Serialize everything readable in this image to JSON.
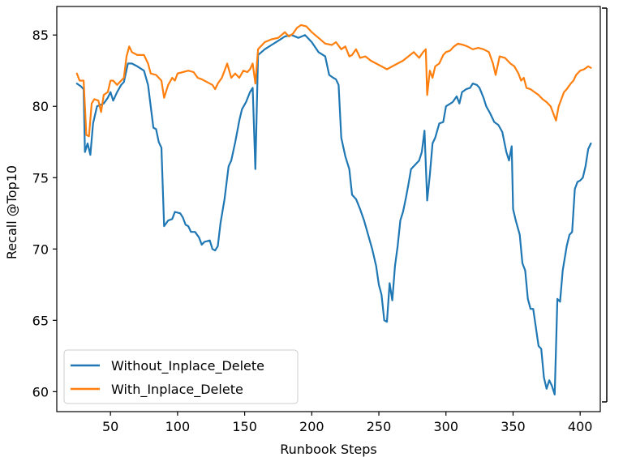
{
  "chart_data": {
    "type": "line",
    "xlabel": "Runbook Steps",
    "ylabel": "Recall @Top10",
    "xlim": [
      10,
      415
    ],
    "ylim": [
      58.6,
      87.0
    ],
    "xticks": [
      50,
      100,
      150,
      200,
      250,
      300,
      350,
      400
    ],
    "yticks": [
      60,
      65,
      70,
      75,
      80,
      85
    ],
    "grid": false,
    "legend_position": "lower-left",
    "series": [
      {
        "name": "Without_Inplace_Delete",
        "color": "#1f77b4",
        "points": [
          [
            25,
            81.6
          ],
          [
            28,
            81.4
          ],
          [
            30,
            81.2
          ],
          [
            31,
            76.8
          ],
          [
            33,
            77.4
          ],
          [
            35,
            76.6
          ],
          [
            37,
            78.8
          ],
          [
            40,
            80.0
          ],
          [
            45,
            80.2
          ],
          [
            48,
            80.6
          ],
          [
            50,
            81.0
          ],
          [
            52,
            80.4
          ],
          [
            55,
            81.0
          ],
          [
            58,
            81.5
          ],
          [
            60,
            81.7
          ],
          [
            63,
            83.0
          ],
          [
            66,
            83.0
          ],
          [
            70,
            82.8
          ],
          [
            75,
            82.5
          ],
          [
            78,
            81.5
          ],
          [
            80,
            80.0
          ],
          [
            82,
            78.5
          ],
          [
            84,
            78.4
          ],
          [
            86,
            77.5
          ],
          [
            88,
            77.1
          ],
          [
            90,
            71.6
          ],
          [
            93,
            72.0
          ],
          [
            96,
            72.1
          ],
          [
            98,
            72.6
          ],
          [
            102,
            72.5
          ],
          [
            104,
            72.2
          ],
          [
            106,
            71.7
          ],
          [
            108,
            71.6
          ],
          [
            110,
            71.2
          ],
          [
            113,
            71.2
          ],
          [
            116,
            70.8
          ],
          [
            118,
            70.3
          ],
          [
            120,
            70.5
          ],
          [
            124,
            70.6
          ],
          [
            126,
            70.0
          ],
          [
            128,
            69.9
          ],
          [
            130,
            70.2
          ],
          [
            132,
            71.8
          ],
          [
            135,
            73.5
          ],
          [
            138,
            75.8
          ],
          [
            140,
            76.2
          ],
          [
            143,
            77.5
          ],
          [
            146,
            79.0
          ],
          [
            148,
            79.8
          ],
          [
            151,
            80.3
          ],
          [
            154,
            81.0
          ],
          [
            156,
            81.3
          ],
          [
            158,
            75.6
          ],
          [
            160,
            83.6
          ],
          [
            165,
            84.0
          ],
          [
            170,
            84.3
          ],
          [
            175,
            84.6
          ],
          [
            180,
            84.9
          ],
          [
            185,
            85.0
          ],
          [
            190,
            84.8
          ],
          [
            195,
            85.0
          ],
          [
            200,
            84.5
          ],
          [
            205,
            83.8
          ],
          [
            210,
            83.5
          ],
          [
            213,
            82.2
          ],
          [
            216,
            82.0
          ],
          [
            218,
            81.9
          ],
          [
            220,
            81.5
          ],
          [
            222,
            77.8
          ],
          [
            225,
            76.5
          ],
          [
            228,
            75.6
          ],
          [
            230,
            73.8
          ],
          [
            233,
            73.5
          ],
          [
            236,
            72.8
          ],
          [
            239,
            72.0
          ],
          [
            242,
            71.0
          ],
          [
            245,
            70.0
          ],
          [
            248,
            68.8
          ],
          [
            250,
            67.5
          ],
          [
            252,
            66.8
          ],
          [
            254,
            65.0
          ],
          [
            256,
            64.9
          ],
          [
            258,
            67.6
          ],
          [
            260,
            66.4
          ],
          [
            262,
            68.8
          ],
          [
            264,
            70.2
          ],
          [
            266,
            72.0
          ],
          [
            268,
            72.6
          ],
          [
            270,
            73.5
          ],
          [
            272,
            74.5
          ],
          [
            274,
            75.6
          ],
          [
            276,
            75.8
          ],
          [
            280,
            76.2
          ],
          [
            282,
            76.8
          ],
          [
            284,
            78.3
          ],
          [
            286,
            73.4
          ],
          [
            288,
            75.2
          ],
          [
            290,
            77.4
          ],
          [
            292,
            77.8
          ],
          [
            295,
            78.8
          ],
          [
            298,
            78.9
          ],
          [
            300,
            80.0
          ],
          [
            305,
            80.3
          ],
          [
            308,
            80.7
          ],
          [
            310,
            80.2
          ],
          [
            312,
            81.0
          ],
          [
            315,
            81.2
          ],
          [
            318,
            81.3
          ],
          [
            320,
            81.6
          ],
          [
            323,
            81.5
          ],
          [
            325,
            81.3
          ],
          [
            328,
            80.6
          ],
          [
            330,
            80.0
          ],
          [
            333,
            79.5
          ],
          [
            336,
            78.9
          ],
          [
            339,
            78.7
          ],
          [
            342,
            78.2
          ],
          [
            345,
            76.8
          ],
          [
            347,
            76.2
          ],
          [
            349,
            77.2
          ],
          [
            350,
            72.8
          ],
          [
            352,
            72.0
          ],
          [
            355,
            71.0
          ],
          [
            357,
            69.0
          ],
          [
            359,
            68.5
          ],
          [
            361,
            66.5
          ],
          [
            363,
            65.8
          ],
          [
            365,
            65.8
          ],
          [
            367,
            64.5
          ],
          [
            369,
            63.2
          ],
          [
            371,
            63.0
          ],
          [
            373,
            61.0
          ],
          [
            375,
            60.2
          ],
          [
            377,
            60.8
          ],
          [
            379,
            60.4
          ],
          [
            381,
            59.8
          ],
          [
            383,
            66.5
          ],
          [
            385,
            66.3
          ],
          [
            387,
            68.5
          ],
          [
            390,
            70.2
          ],
          [
            392,
            71.0
          ],
          [
            394,
            71.2
          ],
          [
            396,
            74.2
          ],
          [
            398,
            74.7
          ],
          [
            400,
            74.8
          ],
          [
            402,
            75.0
          ],
          [
            404,
            75.8
          ],
          [
            406,
            77.0
          ],
          [
            408,
            77.4
          ]
        ]
      },
      {
        "name": "With_Inplace_Delete",
        "color": "#ff7f0e",
        "points": [
          [
            25,
            82.3
          ],
          [
            27,
            81.8
          ],
          [
            30,
            81.8
          ],
          [
            32,
            78.0
          ],
          [
            34,
            77.9
          ],
          [
            36,
            80.2
          ],
          [
            38,
            80.5
          ],
          [
            41,
            80.4
          ],
          [
            43,
            79.6
          ],
          [
            45,
            80.8
          ],
          [
            48,
            81.0
          ],
          [
            50,
            81.8
          ],
          [
            52,
            81.8
          ],
          [
            55,
            81.5
          ],
          [
            58,
            81.8
          ],
          [
            60,
            82.0
          ],
          [
            62,
            83.5
          ],
          [
            64,
            84.2
          ],
          [
            66,
            83.8
          ],
          [
            70,
            83.6
          ],
          [
            75,
            83.6
          ],
          [
            78,
            83.0
          ],
          [
            80,
            82.3
          ],
          [
            84,
            82.2
          ],
          [
            88,
            81.8
          ],
          [
            90,
            80.6
          ],
          [
            93,
            81.5
          ],
          [
            96,
            82.0
          ],
          [
            98,
            81.8
          ],
          [
            100,
            82.3
          ],
          [
            104,
            82.4
          ],
          [
            108,
            82.5
          ],
          [
            112,
            82.4
          ],
          [
            115,
            82.0
          ],
          [
            118,
            81.9
          ],
          [
            122,
            81.7
          ],
          [
            126,
            81.5
          ],
          [
            128,
            81.2
          ],
          [
            130,
            81.6
          ],
          [
            133,
            82.0
          ],
          [
            135,
            82.5
          ],
          [
            137,
            83.0
          ],
          [
            140,
            82.0
          ],
          [
            143,
            82.3
          ],
          [
            146,
            82.0
          ],
          [
            149,
            82.5
          ],
          [
            152,
            82.4
          ],
          [
            154,
            82.6
          ],
          [
            156,
            83.0
          ],
          [
            158,
            81.6
          ],
          [
            160,
            84.0
          ],
          [
            165,
            84.5
          ],
          [
            170,
            84.7
          ],
          [
            175,
            84.8
          ],
          [
            180,
            85.2
          ],
          [
            183,
            84.9
          ],
          [
            186,
            85.1
          ],
          [
            189,
            85.5
          ],
          [
            192,
            85.7
          ],
          [
            196,
            85.6
          ],
          [
            200,
            85.2
          ],
          [
            205,
            84.8
          ],
          [
            210,
            84.4
          ],
          [
            215,
            84.3
          ],
          [
            218,
            84.5
          ],
          [
            222,
            84.0
          ],
          [
            225,
            84.2
          ],
          [
            228,
            83.5
          ],
          [
            230,
            83.6
          ],
          [
            233,
            84.0
          ],
          [
            236,
            83.4
          ],
          [
            240,
            83.5
          ],
          [
            244,
            83.2
          ],
          [
            248,
            83.0
          ],
          [
            252,
            82.8
          ],
          [
            256,
            82.6
          ],
          [
            260,
            82.8
          ],
          [
            264,
            83.0
          ],
          [
            268,
            83.2
          ],
          [
            272,
            83.5
          ],
          [
            276,
            83.8
          ],
          [
            280,
            83.4
          ],
          [
            283,
            83.8
          ],
          [
            285,
            84.0
          ],
          [
            286,
            80.8
          ],
          [
            288,
            82.5
          ],
          [
            290,
            82.0
          ],
          [
            292,
            82.8
          ],
          [
            295,
            83.0
          ],
          [
            298,
            83.6
          ],
          [
            300,
            83.8
          ],
          [
            303,
            83.9
          ],
          [
            306,
            84.2
          ],
          [
            309,
            84.4
          ],
          [
            313,
            84.3
          ],
          [
            316,
            84.2
          ],
          [
            320,
            84.0
          ],
          [
            324,
            84.1
          ],
          [
            328,
            84.0
          ],
          [
            332,
            83.8
          ],
          [
            335,
            83.0
          ],
          [
            337,
            82.2
          ],
          [
            340,
            83.5
          ],
          [
            344,
            83.4
          ],
          [
            348,
            83.0
          ],
          [
            351,
            82.8
          ],
          [
            354,
            82.3
          ],
          [
            356,
            81.8
          ],
          [
            358,
            82.0
          ],
          [
            360,
            81.3
          ],
          [
            363,
            81.2
          ],
          [
            366,
            81.0
          ],
          [
            369,
            80.8
          ],
          [
            372,
            80.5
          ],
          [
            375,
            80.3
          ],
          [
            378,
            80.0
          ],
          [
            380,
            79.5
          ],
          [
            382,
            79.0
          ],
          [
            384,
            80.0
          ],
          [
            386,
            80.5
          ],
          [
            388,
            81.0
          ],
          [
            390,
            81.2
          ],
          [
            393,
            81.6
          ],
          [
            395,
            81.8
          ],
          [
            397,
            82.2
          ],
          [
            400,
            82.5
          ],
          [
            403,
            82.6
          ],
          [
            406,
            82.8
          ],
          [
            408,
            82.7
          ]
        ]
      }
    ]
  }
}
